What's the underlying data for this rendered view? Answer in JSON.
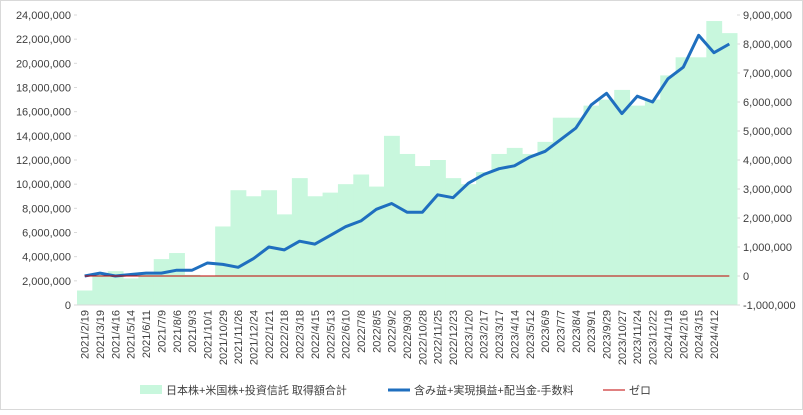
{
  "chart_data": {
    "type": "bar_line",
    "categories": [
      "2021/2/19",
      "2021/3/19",
      "2021/4/16",
      "2021/5/14",
      "2021/6/11",
      "2021/7/9",
      "2021/8/6",
      "2021/9/3",
      "2021/10/1",
      "2021/10/29",
      "2021/11/26",
      "2021/12/24",
      "2022/1/21",
      "2022/2/18",
      "2022/3/18",
      "2022/4/15",
      "2022/5/13",
      "2022/6/10",
      "2022/7/8",
      "2022/8/5",
      "2022/9/2",
      "2022/9/30",
      "2022/10/28",
      "2022/11/25",
      "2022/12/23",
      "2023/1/20",
      "2023/2/17",
      "2023/3/17",
      "2023/4/14",
      "2023/5/12",
      "2023/6/9",
      "2023/7/7",
      "2023/8/4",
      "2023/9/1",
      "2023/9/29",
      "2023/10/27",
      "2023/11/24",
      "2023/12/22",
      "2024/1/19",
      "2024/2/16",
      "2024/3/15",
      "2024/4/12",
      null
    ],
    "series": [
      {
        "name": "日本株+米国株+投資信託 取得額合計",
        "kind": "bar",
        "axis": "y",
        "color": "#c8f7dd",
        "values": [
          1200000,
          2500000,
          2800000,
          2200000,
          2700000,
          3800000,
          4300000,
          2500000,
          2400000,
          6500000,
          9500000,
          9000000,
          9500000,
          7500000,
          10500000,
          9000000,
          9300000,
          10000000,
          10800000,
          9800000,
          14000000,
          12500000,
          11500000,
          12000000,
          10500000,
          10000000,
          11000000,
          12500000,
          13000000,
          12500000,
          13500000,
          15500000,
          15500000,
          16500000,
          17000000,
          17800000,
          16500000,
          17000000,
          19000000,
          20500000,
          20500000,
          23500000,
          22500000
        ]
      },
      {
        "name": "含み益+実現損益+配当金-手数料",
        "kind": "line",
        "axis": "y2",
        "color": "#1f6fbf",
        "values": [
          0,
          100000,
          0,
          50000,
          100000,
          100000,
          200000,
          200000,
          450000,
          400000,
          300000,
          600000,
          1000000,
          900000,
          1200000,
          1100000,
          1400000,
          1700000,
          1900000,
          2300000,
          2500000,
          2200000,
          2200000,
          2800000,
          2700000,
          3200000,
          3500000,
          3700000,
          3800000,
          4100000,
          4300000,
          4700000,
          5100000,
          5900000,
          6300000,
          5600000,
          6200000,
          6000000,
          6800000,
          7200000,
          8300000,
          7700000,
          8000000
        ]
      },
      {
        "name": "ゼロ",
        "kind": "line",
        "axis": "y2",
        "color": "#c00000",
        "values": [
          0,
          0,
          0,
          0,
          0,
          0,
          0,
          0,
          0,
          0,
          0,
          0,
          0,
          0,
          0,
          0,
          0,
          0,
          0,
          0,
          0,
          0,
          0,
          0,
          0,
          0,
          0,
          0,
          0,
          0,
          0,
          0,
          0,
          0,
          0,
          0,
          0,
          0,
          0,
          0,
          0,
          0,
          0
        ]
      }
    ],
    "ylim": [
      0,
      24000000
    ],
    "yticks": [
      0,
      {
        "value": 2000000,
        "label": "2,000,000"
      },
      {
        "value": 4000000,
        "label": "4,000,000"
      },
      {
        "value": 6000000,
        "label": "6,000,000"
      },
      {
        "value": 8000000,
        "label": "8,000,000"
      },
      {
        "value": 10000000,
        "label": "10,000,000"
      },
      {
        "value": 12000000,
        "label": "12,000,000"
      },
      {
        "value": 14000000,
        "label": "14,000,000"
      },
      {
        "value": 16000000,
        "label": "16,000,000"
      },
      {
        "value": 18000000,
        "label": "18,000,000"
      },
      {
        "value": 20000000,
        "label": "20,000,000"
      },
      {
        "value": 22000000,
        "label": "22,000,000"
      },
      {
        "value": 24000000,
        "label": "24,000,000"
      }
    ],
    "y2lim": [
      -1000000,
      9000000
    ],
    "y2ticks": [
      {
        "value": -1000000,
        "label": "-1,000,000"
      },
      0,
      {
        "value": 1000000,
        "label": "1,000,000"
      },
      {
        "value": 2000000,
        "label": "2,000,000"
      },
      {
        "value": 3000000,
        "label": "3,000,000"
      },
      {
        "value": 4000000,
        "label": "4,000,000"
      },
      {
        "value": 5000000,
        "label": "5,000,000"
      },
      {
        "value": 6000000,
        "label": "6,000,000"
      },
      {
        "value": 7000000,
        "label": "7,000,000"
      },
      {
        "value": 8000000,
        "label": "8,000,000"
      },
      {
        "value": 9000000,
        "label": "9,000,000"
      }
    ],
    "legend": "bottom"
  }
}
